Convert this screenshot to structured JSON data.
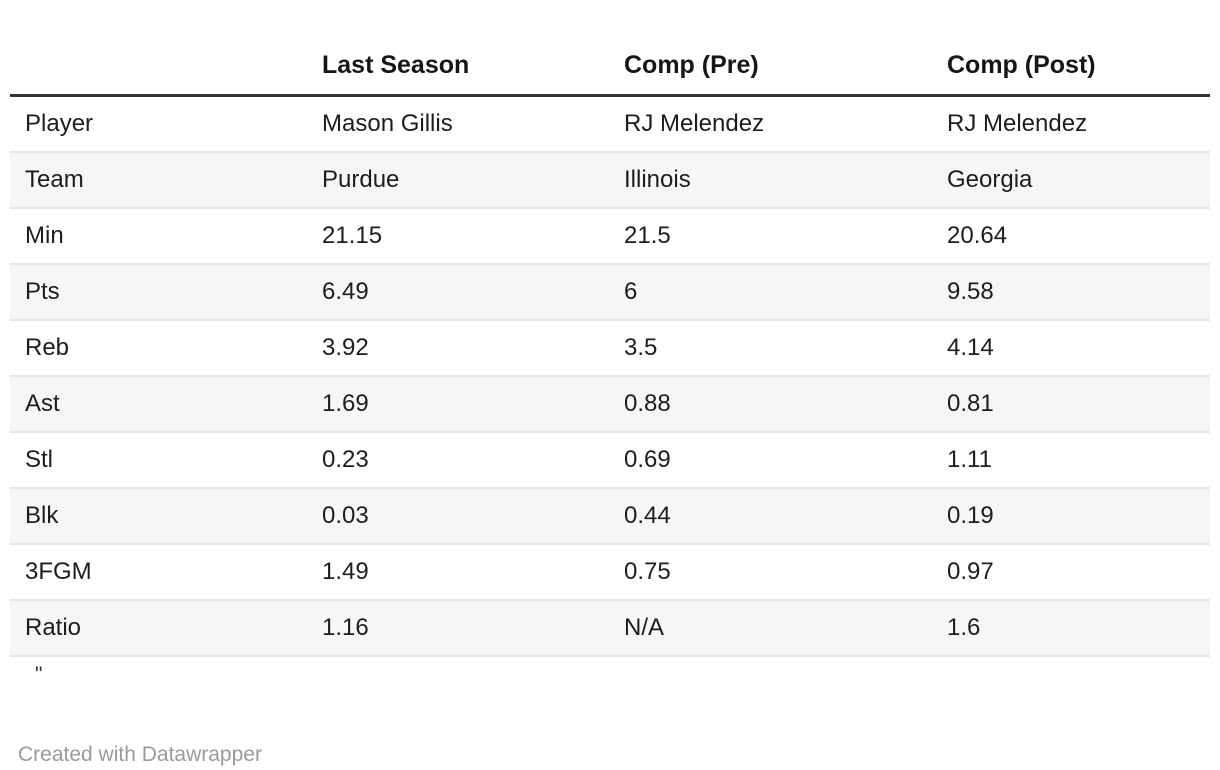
{
  "chart_data": {
    "type": "table",
    "columns": [
      "",
      "Last Season",
      "Comp (Pre)",
      "Comp (Post)"
    ],
    "rows": [
      {
        "label": "Player",
        "values": [
          "Mason Gillis",
          "RJ Melendez",
          "RJ Melendez"
        ]
      },
      {
        "label": "Team",
        "values": [
          "Purdue",
          "Illinois",
          "Georgia"
        ]
      },
      {
        "label": "Min",
        "values": [
          "21.15",
          "21.5",
          "20.64"
        ]
      },
      {
        "label": "Pts",
        "values": [
          "6.49",
          "6",
          "9.58"
        ]
      },
      {
        "label": "Reb",
        "values": [
          "3.92",
          "3.5",
          "4.14"
        ]
      },
      {
        "label": "Ast",
        "values": [
          "1.69",
          "0.88",
          "0.81"
        ]
      },
      {
        "label": "Stl",
        "values": [
          "0.23",
          "0.69",
          "1.11"
        ]
      },
      {
        "label": "Blk",
        "values": [
          "0.03",
          "0.44",
          "0.19"
        ]
      },
      {
        "label": "3FGM",
        "values": [
          "1.49",
          "0.75",
          "0.97"
        ]
      },
      {
        "label": "Ratio",
        "values": [
          "1.16",
          "N/A",
          "1.6"
        ]
      }
    ],
    "layout": {
      "stripes": "even-rows",
      "grid": "horizontal-only"
    }
  },
  "notes": "\"",
  "footer": {
    "attribution": "Created with Datawrapper"
  },
  "colors": {
    "background": "#ffffff",
    "body_text": "#1d1d1d",
    "header_text": "#161616",
    "header_rule": "#333333",
    "row_separator": "#e6e6e6",
    "stripe": "#f6f6f6",
    "attribution_text": "#9a9a9a"
  }
}
